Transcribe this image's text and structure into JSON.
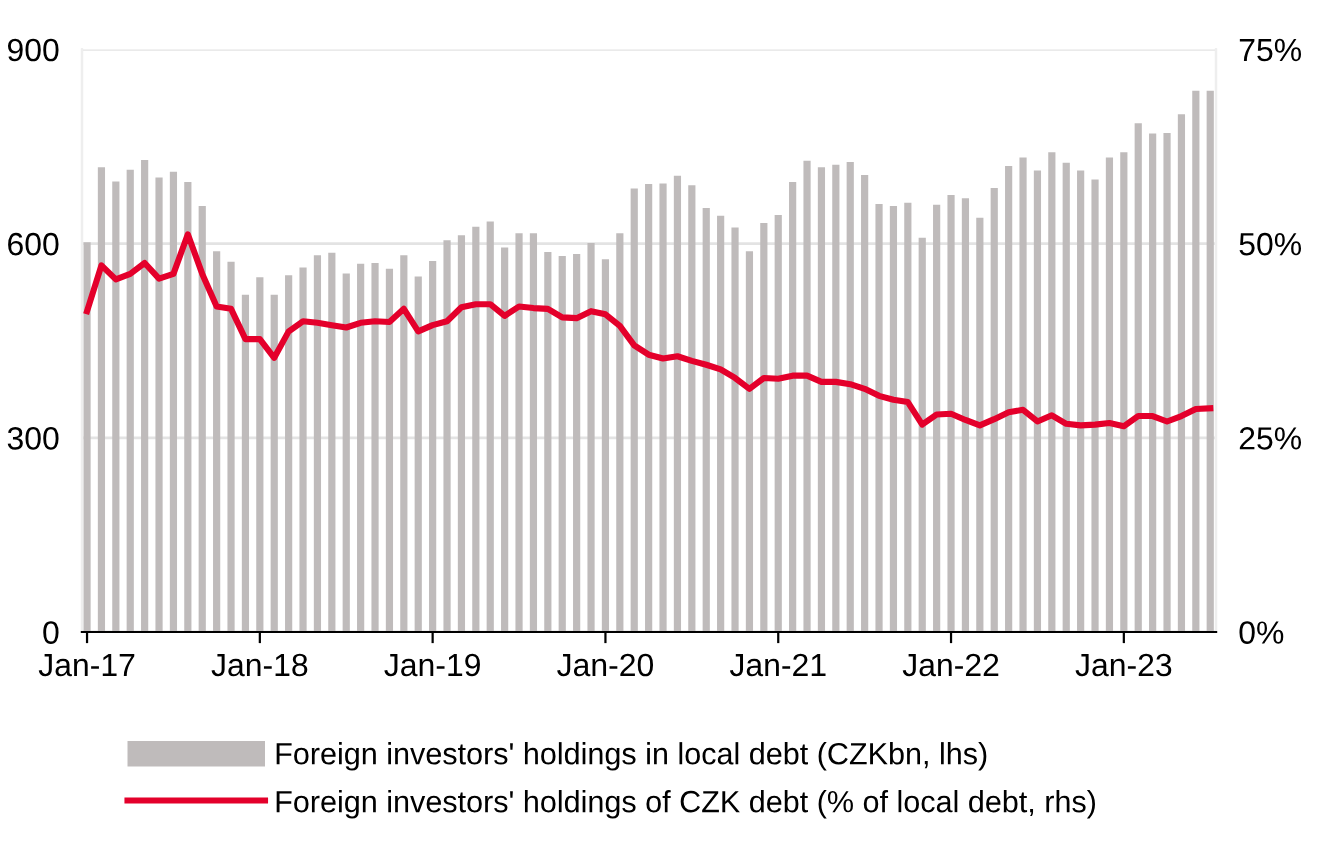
{
  "chart_data": {
    "type": "bar",
    "categories": [
      "Jan-17",
      null,
      null,
      null,
      null,
      null,
      null,
      null,
      null,
      null,
      null,
      null,
      "Jan-18",
      null,
      null,
      null,
      null,
      null,
      null,
      null,
      null,
      null,
      null,
      null,
      "Jan-19",
      null,
      null,
      null,
      null,
      null,
      null,
      null,
      null,
      null,
      null,
      null,
      "Jan-20",
      null,
      null,
      null,
      null,
      null,
      null,
      null,
      null,
      null,
      null,
      null,
      "Jan-21",
      null,
      null,
      null,
      null,
      null,
      null,
      null,
      null,
      null,
      null,
      null,
      "Jan-22",
      null,
      null,
      null,
      null,
      null,
      null,
      null,
      null,
      null,
      null,
      null,
      "Jan-23",
      null,
      null,
      null,
      null,
      null,
      null
    ],
    "series": [
      {
        "name": "Foreign investors' holdings in local debt (CZKbn, lhs)",
        "color": "#bfbbbb",
        "values": [
          602,
          718,
          696,
          714,
          729,
          702,
          711,
          695,
          658,
          588,
          572,
          521,
          548,
          521,
          551,
          563,
          582,
          586,
          554,
          569,
          570,
          561,
          582,
          549,
          573,
          605,
          613,
          626,
          634,
          594,
          616,
          616,
          587,
          581,
          584,
          601,
          576,
          616,
          685,
          692,
          693,
          705,
          690,
          655,
          643,
          625,
          588,
          632,
          644,
          695,
          728,
          718,
          722,
          726,
          706,
          661,
          658,
          663,
          609,
          660,
          675,
          670,
          640,
          686,
          720,
          733,
          713,
          741,
          725,
          713,
          699,
          733,
          741,
          786,
          770,
          771,
          800,
          836,
          836
        ]
      },
      {
        "name": "Foreign investors' holdings of CZK debt (% of local debt, rhs)",
        "type": "line",
        "axis": "y2",
        "color": "#e4002b",
        "values": [
          41.3,
          47.2,
          45.4,
          46.1,
          47.5,
          45.5,
          46.1,
          51.2,
          46.1,
          41.9,
          41.6,
          37.7,
          37.7,
          35.3,
          38.7,
          40.0,
          39.8,
          39.5,
          39.2,
          39.8,
          40.0,
          39.9,
          41.6,
          38.7,
          39.5,
          40.0,
          41.8,
          42.2,
          42.2,
          40.7,
          41.9,
          41.7,
          41.6,
          40.5,
          40.4,
          41.3,
          40.9,
          39.4,
          36.9,
          35.7,
          35.2,
          35.5,
          34.9,
          34.4,
          33.8,
          32.7,
          31.3,
          32.7,
          32.6,
          33.0,
          33.0,
          32.2,
          32.2,
          31.9,
          31.3,
          30.4,
          29.9,
          29.6,
          26.7,
          28.0,
          28.1,
          27.3,
          26.6,
          27.4,
          28.3,
          28.6,
          27.1,
          27.9,
          26.8,
          26.6,
          26.7,
          26.9,
          26.5,
          27.8,
          27.8,
          27.1,
          27.8,
          28.7,
          28.8
        ]
      }
    ],
    "ylim": [
      0,
      900
    ],
    "yticks": [
      0,
      300,
      600,
      900
    ],
    "y2lim": [
      0,
      75
    ],
    "y2ticks": [
      {
        "value": 0,
        "label": "0%"
      },
      {
        "value": 25,
        "label": "25%"
      },
      {
        "value": 50,
        "label": "50%"
      },
      {
        "value": 75,
        "label": "75%"
      }
    ],
    "grid": "y",
    "legend": "bottom",
    "marker": "none",
    "line_style": "solid"
  }
}
